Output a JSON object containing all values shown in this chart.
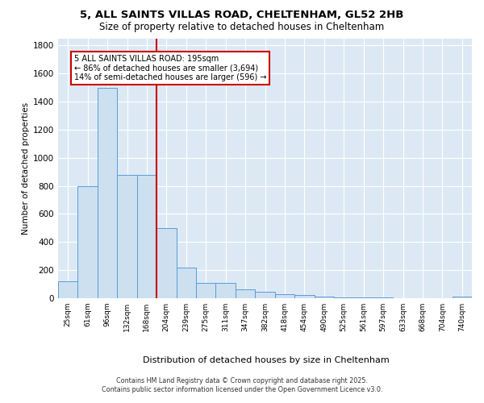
{
  "title1": "5, ALL SAINTS VILLAS ROAD, CHELTENHAM, GL52 2HB",
  "title2": "Size of property relative to detached houses in Cheltenham",
  "xlabel": "Distribution of detached houses by size in Cheltenham",
  "ylabel": "Number of detached properties",
  "bar_labels": [
    "25sqm",
    "61sqm",
    "96sqm",
    "132sqm",
    "168sqm",
    "204sqm",
    "239sqm",
    "275sqm",
    "311sqm",
    "347sqm",
    "382sqm",
    "418sqm",
    "454sqm",
    "490sqm",
    "525sqm",
    "561sqm",
    "597sqm",
    "633sqm",
    "668sqm",
    "704sqm",
    "740sqm"
  ],
  "bar_values": [
    120,
    800,
    1500,
    880,
    880,
    500,
    220,
    110,
    110,
    65,
    45,
    30,
    25,
    10,
    5,
    5,
    3,
    2,
    1,
    1,
    10
  ],
  "bar_color": "#cce0f0",
  "bar_edge_color": "#5b9bd5",
  "vline_color": "#cc0000",
  "vline_x_index": 5,
  "annotation_text": "5 ALL SAINTS VILLAS ROAD: 195sqm\n← 86% of detached houses are smaller (3,694)\n14% of semi-detached houses are larger (596) →",
  "annotation_box_color": "white",
  "annotation_box_edge": "#cc0000",
  "ylim": [
    0,
    1850
  ],
  "yticks": [
    0,
    200,
    400,
    600,
    800,
    1000,
    1200,
    1400,
    1600,
    1800
  ],
  "background_color": "#dce9f5",
  "grid_color": "white",
  "footer_line1": "Contains HM Land Registry data © Crown copyright and database right 2025.",
  "footer_line2": "Contains public sector information licensed under the Open Government Licence v3.0."
}
